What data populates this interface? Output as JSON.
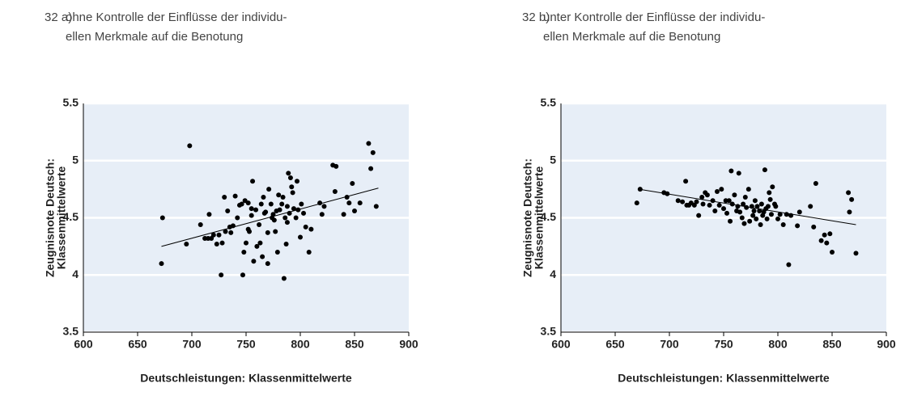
{
  "chart_data": [
    {
      "type": "scatter",
      "label": "32 a)",
      "title": [
        "ohne Kontrolle der Einflüsse der individu-",
        "ellen Merkmale auf die Benotung"
      ],
      "xlabel": "Deutschleistungen: Klassenmittelwerte",
      "ylabel": [
        "Zeugnisnote Deutsch:",
        "Klassenmittelwerte"
      ],
      "xlim": [
        600,
        900
      ],
      "xticks": [
        600,
        650,
        700,
        750,
        800,
        850,
        900
      ],
      "ylim": [
        3.5,
        5.5
      ],
      "yticks": [
        3.5,
        4,
        4.5,
        5,
        5.5
      ],
      "color": "#000000",
      "background": "#e7eef7",
      "grid": true,
      "x": [
        672,
        673,
        698,
        695,
        708,
        712,
        715,
        716,
        718,
        720,
        723,
        725,
        727,
        728,
        730,
        731,
        733,
        735,
        736,
        738,
        740,
        742,
        744,
        746,
        747,
        748,
        749,
        750,
        752,
        752,
        753,
        755,
        755,
        756,
        757,
        759,
        760,
        762,
        763,
        764,
        765,
        766,
        767,
        768,
        770,
        770,
        771,
        773,
        774,
        775,
        776,
        777,
        778,
        779,
        780,
        781,
        783,
        784,
        785,
        786,
        787,
        788,
        788,
        789,
        790,
        791,
        792,
        793,
        794,
        796,
        797,
        798,
        800,
        801,
        803,
        805,
        808,
        810,
        818,
        820,
        822,
        830,
        832,
        833,
        840,
        843,
        845,
        848,
        850,
        863,
        865,
        867,
        870,
        855
      ],
      "values": [
        4.1,
        4.5,
        5.13,
        4.27,
        4.44,
        4.32,
        4.32,
        4.53,
        4.32,
        4.35,
        4.27,
        4.35,
        4.0,
        4.28,
        4.68,
        4.38,
        4.56,
        4.42,
        4.37,
        4.43,
        4.69,
        4.5,
        4.61,
        4.62,
        4.0,
        4.2,
        4.65,
        4.28,
        4.63,
        4.4,
        4.38,
        4.58,
        4.52,
        4.82,
        4.12,
        4.57,
        4.25,
        4.44,
        4.28,
        4.62,
        4.16,
        4.68,
        4.54,
        4.55,
        4.1,
        4.37,
        4.75,
        4.62,
        4.5,
        4.53,
        4.48,
        4.38,
        4.56,
        4.2,
        4.7,
        4.57,
        4.62,
        4.68,
        3.97,
        4.5,
        4.27,
        4.46,
        4.6,
        4.89,
        4.54,
        4.85,
        4.77,
        4.72,
        4.58,
        4.5,
        4.82,
        4.57,
        4.33,
        4.62,
        4.54,
        4.42,
        4.2,
        4.4,
        4.63,
        4.53,
        4.6,
        4.96,
        4.73,
        4.95,
        4.53,
        4.68,
        4.63,
        4.8,
        4.56,
        5.15,
        4.93,
        5.07,
        4.6,
        4.63
      ],
      "trendline": {
        "x": [
          672,
          872
        ],
        "y": [
          4.25,
          4.76
        ]
      }
    },
    {
      "type": "scatter",
      "label": "32 b)",
      "title": [
        "unter Kontrolle der Einflüsse der individu-",
        "ellen Merkmale auf die Benotung"
      ],
      "xlabel": "Deutschleistungen: Klassenmittelwerte",
      "ylabel": [
        "Zeugnisnote Deutsch:",
        "Klassenmittelwerte"
      ],
      "xlim": [
        600,
        900
      ],
      "xticks": [
        600,
        650,
        700,
        750,
        800,
        850,
        900
      ],
      "ylim": [
        3.5,
        5.5
      ],
      "yticks": [
        3.5,
        4,
        4.5,
        5,
        5.5
      ],
      "color": "#000000",
      "background": "#e7eef7",
      "grid": true,
      "x": [
        670,
        673,
        695,
        698,
        708,
        712,
        715,
        716,
        718,
        720,
        723,
        725,
        727,
        730,
        731,
        733,
        735,
        737,
        740,
        742,
        744,
        746,
        748,
        750,
        752,
        753,
        755,
        756,
        757,
        758,
        760,
        762,
        763,
        764,
        765,
        767,
        768,
        769,
        770,
        771,
        773,
        774,
        776,
        777,
        778,
        779,
        780,
        781,
        783,
        784,
        785,
        786,
        787,
        788,
        789,
        790,
        791,
        792,
        793,
        794,
        795,
        797,
        798,
        800,
        802,
        805,
        808,
        810,
        812,
        818,
        820,
        830,
        833,
        835,
        840,
        843,
        845,
        848,
        850,
        865,
        866,
        868,
        872
      ],
      "values": [
        4.63,
        4.75,
        4.72,
        4.71,
        4.65,
        4.64,
        4.82,
        4.61,
        4.61,
        4.63,
        4.61,
        4.64,
        4.52,
        4.68,
        4.62,
        4.72,
        4.7,
        4.61,
        4.65,
        4.56,
        4.73,
        4.61,
        4.75,
        4.58,
        4.65,
        4.54,
        4.65,
        4.47,
        4.91,
        4.62,
        4.7,
        4.56,
        4.6,
        4.89,
        4.55,
        4.5,
        4.62,
        4.45,
        4.68,
        4.59,
        4.75,
        4.47,
        4.6,
        4.52,
        4.56,
        4.65,
        4.49,
        4.6,
        4.56,
        4.44,
        4.62,
        4.52,
        4.55,
        4.92,
        4.58,
        4.49,
        4.6,
        4.72,
        4.66,
        4.53,
        4.77,
        4.62,
        4.6,
        4.49,
        4.53,
        4.44,
        4.53,
        4.09,
        4.52,
        4.43,
        4.55,
        4.6,
        4.42,
        4.8,
        4.3,
        4.35,
        4.28,
        4.36,
        4.2,
        4.72,
        4.55,
        4.66,
        4.19
      ],
      "trendline": {
        "x": [
          672,
          872
        ],
        "y": [
          4.75,
          4.44
        ]
      }
    }
  ]
}
